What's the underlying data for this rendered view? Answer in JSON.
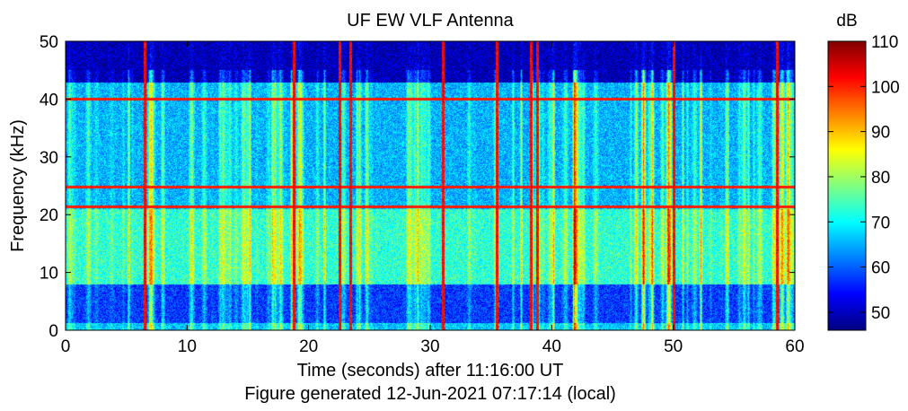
{
  "chart_data": {
    "type": "heatmap",
    "title": "UF EW VLF Antenna",
    "xlabel": "Time (seconds) after 11:16:00 UT",
    "ylabel": "Frequency (kHz)",
    "footer": "Figure generated 12-Jun-2021 07:17:14 (local)",
    "xlim": [
      0,
      60
    ],
    "ylim": [
      0,
      50
    ],
    "x_ticks": [
      "0",
      "10",
      "20",
      "30",
      "40",
      "50",
      "60"
    ],
    "y_ticks": [
      "0",
      "10",
      "20",
      "30",
      "40",
      "50"
    ],
    "colorbar": {
      "label": "dB",
      "range": [
        46,
        110
      ],
      "ticks": [
        "50",
        "60",
        "70",
        "80",
        "90",
        "100",
        "110"
      ],
      "colormap": "jet"
    },
    "features": {
      "narrowband_lines_khz": [
        21.4,
        24.8,
        40
      ],
      "impulsive_spike_times_s": [
        6.5,
        18.8,
        22.5,
        23.4,
        31,
        35.5,
        38.3,
        38.8,
        50,
        58.5
      ],
      "bright_band_khz": [
        8,
        21
      ],
      "quiet_above_khz": 43
    },
    "colors": {
      "low": "#000080",
      "mid": "#00ffff",
      "high": "#800000"
    }
  }
}
